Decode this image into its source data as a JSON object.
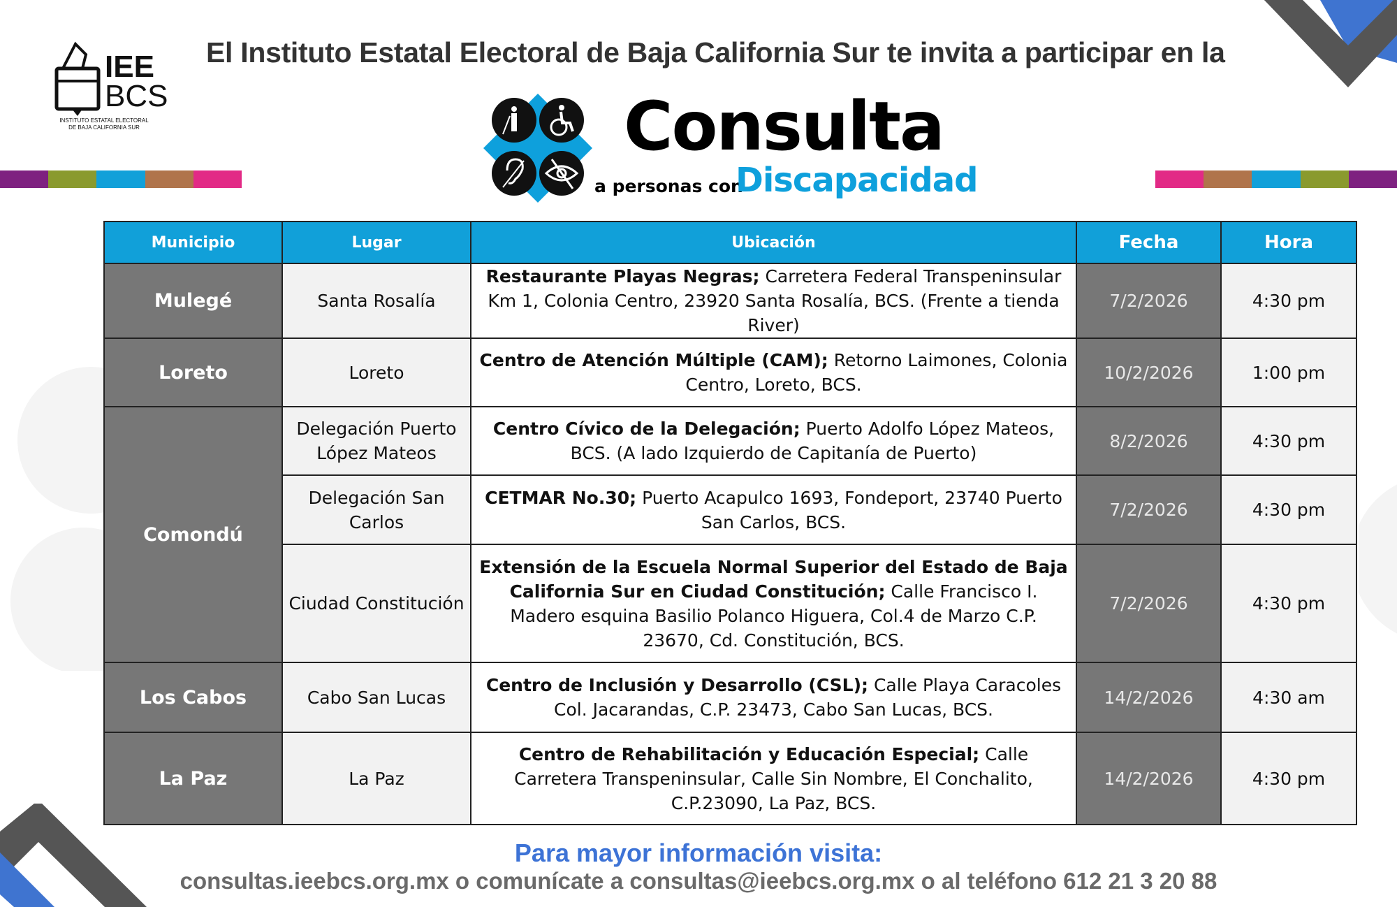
{
  "logo": {
    "line1": "IEE",
    "line2": "BCS",
    "caption1": "INSTITUTO ESTATAL ELECTORAL",
    "caption2": "DE BAJA CALIFORNIA SUR"
  },
  "headline": "El Instituto Estatal Electoral de Baja California Sur te invita a participar en la",
  "event": {
    "title": "Consulta",
    "subtitle_prefix": "a personas con",
    "subtitle_highlight": "Discapacidad"
  },
  "colors": {
    "header_blue": "#11a0d9",
    "dark_cell": "#777777",
    "light_cell": "#f2f2f2",
    "footer_blue": "#3d73d6",
    "stripes": [
      "#7e2180",
      "#8a9a2e",
      "#11a0d9",
      "#b0744b",
      "#e22a86"
    ]
  },
  "icons": [
    "blind-person-icon",
    "wheelchair-icon",
    "deaf-ear-icon",
    "visual-impairment-eye-icon"
  ],
  "table": {
    "headers": [
      "Municipio",
      "Lugar",
      "Ubicación",
      "Fecha",
      "Hora"
    ],
    "rows": [
      {
        "municipio": "Mulegé",
        "lugar": "Santa Rosalía",
        "ubic_bold": "Restaurante Playas Negras;",
        "ubic_text": " Carretera Federal Transpeninsular Km 1, Colonia Centro, 23920 Santa Rosalía, BCS. (Frente a tienda River)",
        "fecha": "7/2/2026",
        "hora": "4:30 pm"
      },
      {
        "municipio": "Loreto",
        "lugar": "Loreto",
        "ubic_bold": "Centro de Atención Múltiple (CAM);",
        "ubic_text": " Retorno Laimones, Colonia Centro, Loreto, BCS.",
        "fecha": "10/2/2026",
        "hora": "1:00 pm"
      },
      {
        "municipio": "Comondú",
        "lugar": "Delegación Puerto López Mateos",
        "ubic_bold": "Centro Cívico de la Delegación;",
        "ubic_text": " Puerto Adolfo López Mateos, BCS. (A lado Izquierdo de Capitanía de Puerto)",
        "fecha": "8/2/2026",
        "hora": "4:30 pm"
      },
      {
        "municipio": "",
        "lugar": "Delegación San Carlos",
        "ubic_bold": "CETMAR No.30;",
        "ubic_text": " Puerto Acapulco 1693, Fondeport, 23740 Puerto San Carlos, BCS.",
        "fecha": "7/2/2026",
        "hora": "4:30 pm"
      },
      {
        "municipio": "",
        "lugar": "Ciudad Constitución",
        "ubic_bold": "Extensión de la Escuela Normal Superior del Estado de Baja California Sur en Ciudad Constitución;",
        "ubic_text": " Calle Francisco I. Madero esquina Basilio Polanco Higuera, Col.4 de Marzo C.P. 23670, Cd. Constitución, BCS.",
        "fecha": "7/2/2026",
        "hora": "4:30 pm"
      },
      {
        "municipio": "Los Cabos",
        "lugar": "Cabo San Lucas",
        "ubic_bold": "Centro de Inclusión y Desarrollo (CSL);",
        "ubic_text": " Calle Playa Caracoles Col. Jacarandas, C.P. 23473, Cabo San Lucas, BCS.",
        "fecha": "14/2/2026",
        "hora": "4:30 am"
      },
      {
        "municipio": "La Paz",
        "lugar": "La Paz",
        "ubic_bold": "Centro de Rehabilitación y Educación Especial;",
        "ubic_text": " Calle Carretera Transpeninsular, Calle Sin Nombre, El Conchalito, C.P.23090, La Paz, BCS.",
        "fecha": "14/2/2026",
        "hora": "4:30 pm"
      }
    ]
  },
  "footer": {
    "line1": "Para mayor información visita:",
    "line2": "consultas.ieebcs.org.mx o comunícate a consultas@ieebcs.org.mx o al teléfono 612 21 3 20 88"
  }
}
